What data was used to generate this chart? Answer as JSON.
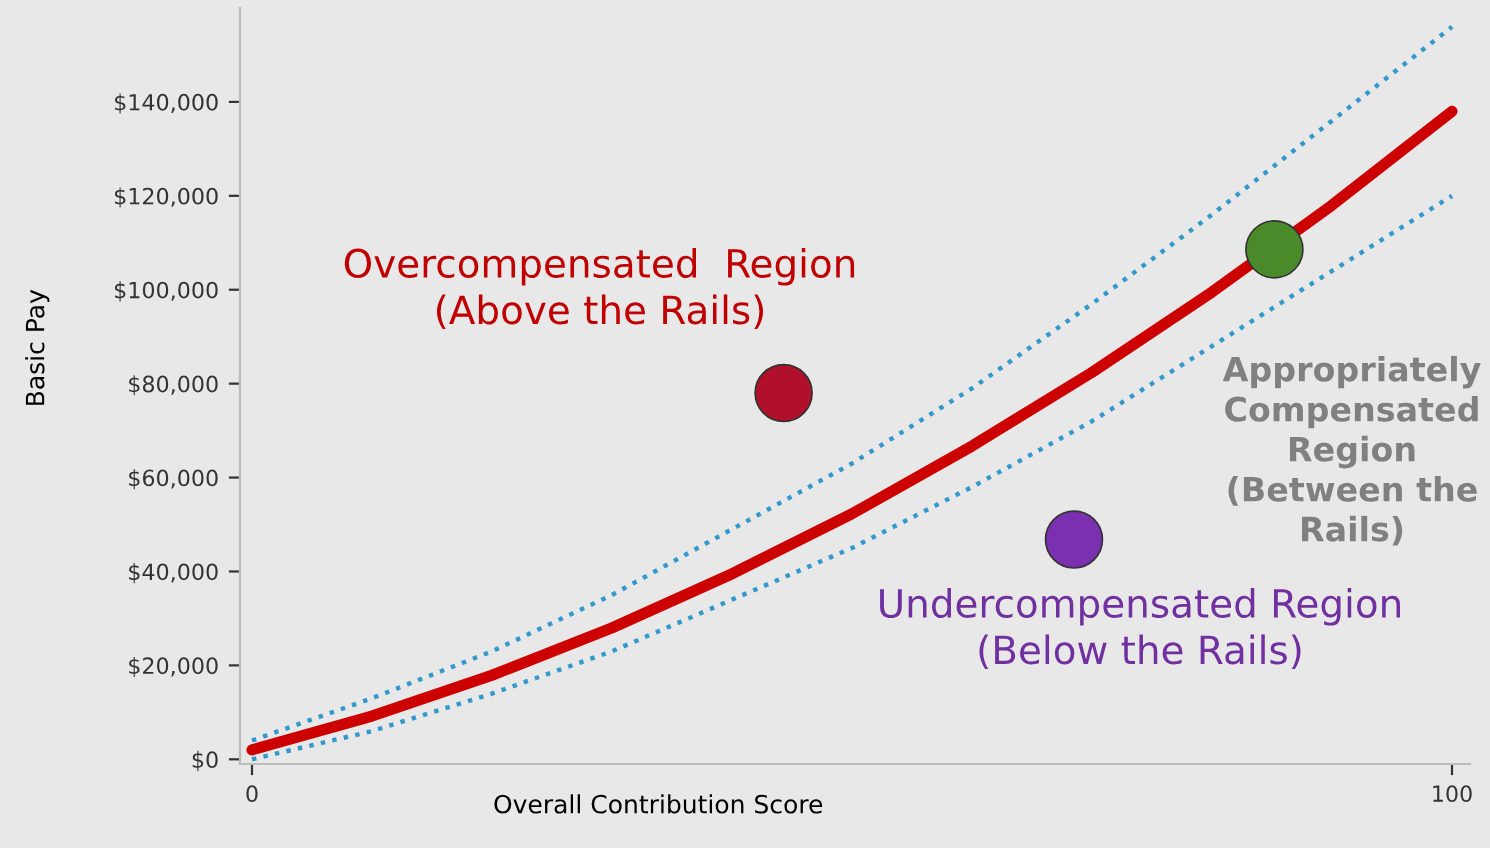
{
  "chart_data": {
    "type": "line",
    "xlabel": "Overall Contribution Score",
    "ylabel": "Basic Pay",
    "xlim": [
      -1,
      101.5
    ],
    "ylim": [
      -1000,
      160000
    ],
    "xticks": [
      0,
      100
    ],
    "yticks": [
      {
        "value": 0,
        "label": "$0"
      },
      {
        "value": 20000,
        "label": "$20,000"
      },
      {
        "value": 40000,
        "label": "$40,000"
      },
      {
        "value": 60000,
        "label": "$60,000"
      },
      {
        "value": 80000,
        "label": "$80,000"
      },
      {
        "value": 100000,
        "label": "$100,000"
      },
      {
        "value": 120000,
        "label": "$120,000"
      },
      {
        "value": 140000,
        "label": "$140,000"
      }
    ],
    "grid": false,
    "series": [
      {
        "color": "#3399cc",
        "line_style": "dotted",
        "marker": "none",
        "x": [
          0,
          10,
          20,
          30,
          40,
          50,
          60,
          70,
          80,
          90,
          100
        ],
        "values": [
          4000,
          13000,
          23000,
          35000,
          49000,
          63000,
          79000,
          97000,
          116000,
          136000,
          156000
        ]
      },
      {
        "color": "#3399cc",
        "line_style": "dotted",
        "marker": "none",
        "x": [
          0,
          10,
          20,
          30,
          40,
          50,
          60,
          70,
          80,
          90,
          100
        ],
        "values": [
          0,
          6000,
          14000,
          23000,
          34000,
          45000,
          58000,
          72000,
          88000,
          104000,
          120000
        ]
      },
      {
        "color": "#cc0000",
        "line_style": "solid",
        "marker": "none",
        "x": [
          0,
          10,
          20,
          30,
          40,
          50,
          60,
          70,
          80,
          90,
          100
        ],
        "values": [
          2000,
          9200,
          17900,
          28000,
          39500,
          52300,
          66700,
          82400,
          99500,
          118000,
          138000
        ]
      },
      {
        "type": "scatter",
        "marker": "circle",
        "x": [
          44.3,
          85.2,
          68.5
        ],
        "values": [
          78000,
          108600,
          46800
        ],
        "colors": [
          "#b0102a",
          "#4a8a2a",
          "#7a30b0"
        ]
      }
    ],
    "annotations": [
      "Overcompensated  Region\n(Above the Rails)",
      "Appropriately\nCompensated\nRegion\n(Between the\nRails)",
      "Undercompensated Region\n(Below the Rails)"
    ]
  }
}
